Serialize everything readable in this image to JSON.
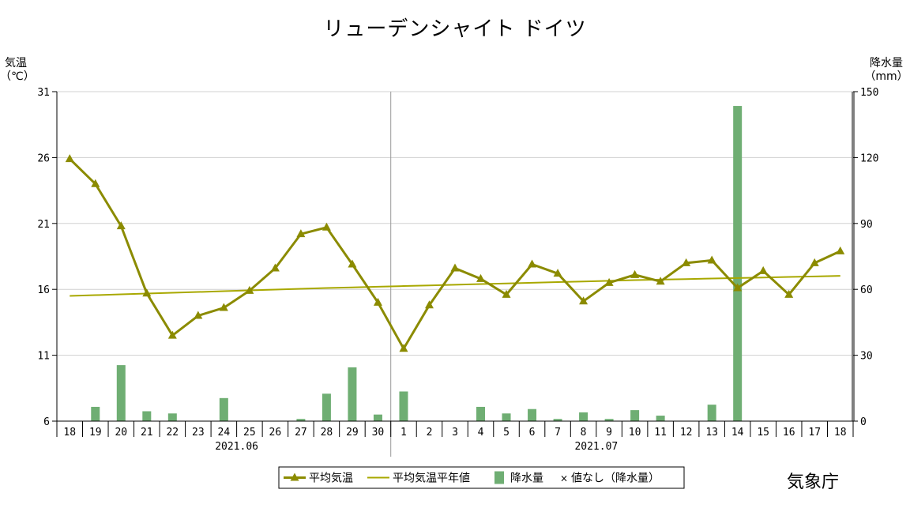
{
  "chart_data": {
    "type": "line",
    "title": "リューデンシャイト ドイツ",
    "ylabel_left": [
      "気温",
      "（℃）"
    ],
    "ylabel_right": [
      "降水量",
      "（mm）"
    ],
    "ylim_left": [
      6,
      31
    ],
    "yticks_left": [
      6,
      11,
      16,
      21,
      26,
      31
    ],
    "ylim_right": [
      0,
      150
    ],
    "yticks_right": [
      0,
      30,
      60,
      90,
      120,
      150
    ],
    "categories": [
      "18",
      "19",
      "20",
      "21",
      "22",
      "23",
      "24",
      "25",
      "26",
      "27",
      "28",
      "29",
      "30",
      "1",
      "2",
      "3",
      "4",
      "5",
      "6",
      "7",
      "8",
      "9",
      "10",
      "11",
      "12",
      "13",
      "14",
      "15",
      "16",
      "17",
      "18"
    ],
    "month_labels": [
      {
        "text": "2021.06",
        "index": 6
      },
      {
        "text": "2021.07",
        "index": 20
      }
    ],
    "month_divider_index": 12.5,
    "series": [
      {
        "name": "平均気温",
        "kind": "line-marker",
        "axis": "left",
        "color": "#8b8b00",
        "values": [
          25.9,
          24.0,
          20.8,
          15.7,
          12.5,
          14.0,
          14.6,
          15.9,
          17.6,
          20.2,
          20.7,
          17.9,
          15.0,
          11.5,
          14.8,
          17.6,
          16.8,
          15.6,
          17.9,
          17.2,
          15.1,
          16.5,
          17.1,
          16.6,
          18.0,
          18.2,
          16.1,
          17.4,
          15.6,
          18.0,
          18.9
        ]
      },
      {
        "name": "平均気温平年値",
        "kind": "line",
        "axis": "left",
        "color": "#a8a800",
        "values": [
          15.5,
          15.56,
          15.62,
          15.68,
          15.74,
          15.8,
          15.86,
          15.92,
          15.98,
          16.04,
          16.1,
          16.15,
          16.2,
          16.25,
          16.3,
          16.35,
          16.4,
          16.45,
          16.5,
          16.55,
          16.6,
          16.65,
          16.7,
          16.74,
          16.78,
          16.82,
          16.86,
          16.9,
          16.94,
          16.98,
          17.02
        ]
      },
      {
        "name": "降水量",
        "kind": "bar",
        "axis": "right",
        "color": "#6fae73",
        "values": [
          0,
          6.5,
          25.5,
          4.5,
          3.5,
          0,
          10.5,
          0,
          0,
          1.0,
          12.5,
          24.5,
          3.0,
          13.5,
          0,
          0,
          6.5,
          3.5,
          5.5,
          1.0,
          4.0,
          1.0,
          5.0,
          2.5,
          0,
          7.5,
          143.5,
          0,
          0,
          0,
          0
        ]
      }
    ],
    "legend": {
      "placement": "bottom-center",
      "items": [
        "平均気温",
        "平均気温平年値",
        "降水量",
        "×",
        "値なし（降水量）"
      ]
    },
    "grid": true,
    "colors": {
      "temp": "#8b8b00",
      "normal": "#a8a800",
      "precip": "#6fae73",
      "grid": "#d0d0d0",
      "divider": "#999999"
    }
  },
  "footer": {
    "agency": "気象庁"
  }
}
